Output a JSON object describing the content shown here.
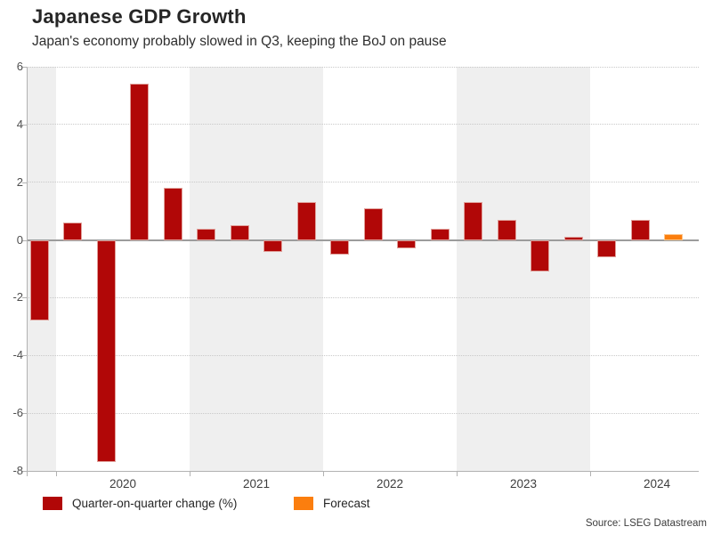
{
  "header": {
    "title": "Japanese GDP Growth",
    "subtitle": "Japan's economy probably slowed in Q3, keeping the BoJ on pause"
  },
  "footer": {
    "source": "Source: LSEG Datastream"
  },
  "legend": {
    "items": [
      {
        "label": "Quarter-on-quarter change (%)",
        "color": "#b10707"
      },
      {
        "label": "Forecast",
        "color": "#fb7e0e"
      }
    ]
  },
  "chart_data": {
    "type": "bar",
    "title": "Japanese GDP Growth",
    "subtitle": "Japan's economy probably slowed in Q3, keeping the BoJ on pause",
    "unit": "%",
    "ylabel": "",
    "xlabel": "",
    "ylim": [
      -8,
      6
    ],
    "yticks": [
      6,
      4,
      2,
      0,
      -2,
      -4,
      -6,
      -8
    ],
    "x_year_ticks": [
      2020,
      2021,
      2022,
      2023,
      2024
    ],
    "shaded_years": [
      2019,
      2021,
      2023
    ],
    "grid": "dotted-horizontal",
    "legend_position": "bottom-left",
    "bar_color": "#b10707",
    "forecast_color": "#fb7e0e",
    "band_color": "#efefef",
    "points": [
      {
        "quarter": "2019 Q4",
        "value": -2.8,
        "kind": "actual"
      },
      {
        "quarter": "2020 Q1",
        "value": 0.6,
        "kind": "actual"
      },
      {
        "quarter": "2020 Q2",
        "value": -7.7,
        "kind": "actual"
      },
      {
        "quarter": "2020 Q3",
        "value": 5.4,
        "kind": "actual"
      },
      {
        "quarter": "2020 Q4",
        "value": 1.8,
        "kind": "actual"
      },
      {
        "quarter": "2021 Q1",
        "value": 0.4,
        "kind": "actual"
      },
      {
        "quarter": "2021 Q2",
        "value": 0.5,
        "kind": "actual"
      },
      {
        "quarter": "2021 Q3",
        "value": -0.4,
        "kind": "actual"
      },
      {
        "quarter": "2021 Q4",
        "value": 1.3,
        "kind": "actual"
      },
      {
        "quarter": "2022 Q1",
        "value": -0.5,
        "kind": "actual"
      },
      {
        "quarter": "2022 Q2",
        "value": 1.1,
        "kind": "actual"
      },
      {
        "quarter": "2022 Q3",
        "value": -0.3,
        "kind": "actual"
      },
      {
        "quarter": "2022 Q4",
        "value": 0.4,
        "kind": "actual"
      },
      {
        "quarter": "2023 Q1",
        "value": 1.3,
        "kind": "actual"
      },
      {
        "quarter": "2023 Q2",
        "value": 0.7,
        "kind": "actual"
      },
      {
        "quarter": "2023 Q3",
        "value": -1.1,
        "kind": "actual"
      },
      {
        "quarter": "2023 Q4",
        "value": 0.1,
        "kind": "actual"
      },
      {
        "quarter": "2024 Q1",
        "value": -0.6,
        "kind": "actual"
      },
      {
        "quarter": "2024 Q2",
        "value": 0.7,
        "kind": "actual"
      },
      {
        "quarter": "2024 Q3",
        "value": 0.2,
        "kind": "forecast"
      }
    ]
  }
}
